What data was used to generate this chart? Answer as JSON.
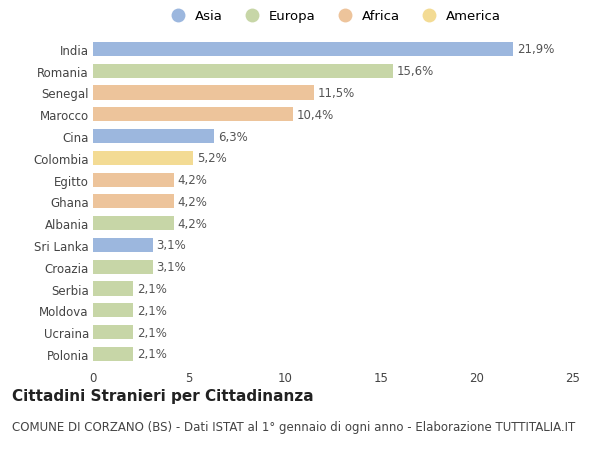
{
  "categories": [
    "India",
    "Romania",
    "Senegal",
    "Marocco",
    "Cina",
    "Colombia",
    "Egitto",
    "Ghana",
    "Albania",
    "Sri Lanka",
    "Croazia",
    "Serbia",
    "Moldova",
    "Ucraina",
    "Polonia"
  ],
  "values": [
    21.9,
    15.6,
    11.5,
    10.4,
    6.3,
    5.2,
    4.2,
    4.2,
    4.2,
    3.1,
    3.1,
    2.1,
    2.1,
    2.1,
    2.1
  ],
  "labels": [
    "21,9%",
    "15,6%",
    "11,5%",
    "10,4%",
    "6,3%",
    "5,2%",
    "4,2%",
    "4,2%",
    "4,2%",
    "3,1%",
    "3,1%",
    "2,1%",
    "2,1%",
    "2,1%",
    "2,1%"
  ],
  "colors": [
    "#7b9fd4",
    "#b5c98a",
    "#e8b07a",
    "#e8b07a",
    "#7b9fd4",
    "#f0d070",
    "#e8b07a",
    "#e8b07a",
    "#b5c98a",
    "#7b9fd4",
    "#b5c98a",
    "#b5c98a",
    "#b5c98a",
    "#b5c98a",
    "#b5c98a"
  ],
  "legend_labels": [
    "Asia",
    "Europa",
    "Africa",
    "America"
  ],
  "legend_colors": [
    "#7b9fd4",
    "#b5c98a",
    "#e8b07a",
    "#f0d070"
  ],
  "xlim": [
    0,
    25
  ],
  "xticks": [
    0,
    5,
    10,
    15,
    20,
    25
  ],
  "title": "Cittadini Stranieri per Cittadinanza",
  "subtitle": "COMUNE DI CORZANO (BS) - Dati ISTAT al 1° gennaio di ogni anno - Elaborazione TUTTITALIA.IT",
  "background_color": "#ffffff",
  "bar_height": 0.65,
  "title_fontsize": 11,
  "subtitle_fontsize": 8.5,
  "label_fontsize": 8.5,
  "tick_fontsize": 8.5,
  "legend_fontsize": 9.5
}
